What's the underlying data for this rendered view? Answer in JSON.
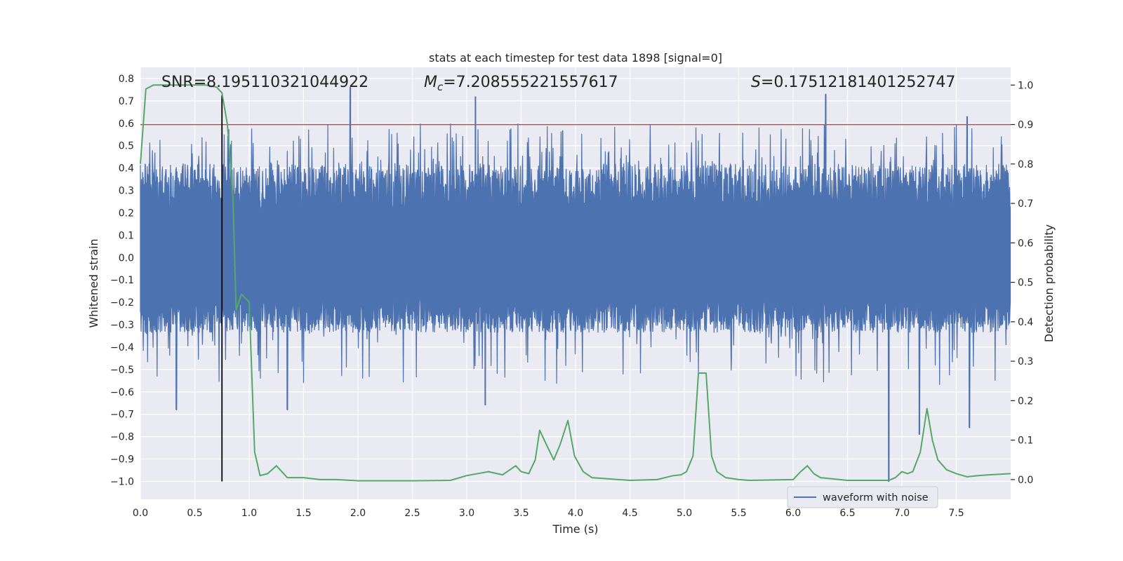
{
  "chart_data": {
    "type": "line",
    "title": "stats at each timestep for test data 1898 [signal=0]",
    "xlabel": "Time (s)",
    "ylabel_left": "Whitened strain",
    "ylabel_right": "Detection probability",
    "xlim": [
      0.0,
      8.0
    ],
    "ylim_left": [
      -1.08,
      0.85
    ],
    "ylim_right": [
      -0.05,
      1.045
    ],
    "x_ticks": [
      0.0,
      0.5,
      1.0,
      1.5,
      2.0,
      2.5,
      3.0,
      3.5,
      4.0,
      4.5,
      5.0,
      5.5,
      6.0,
      6.5,
      7.0,
      7.5
    ],
    "x_tick_labels": [
      "0.0",
      "0.5",
      "1.0",
      "1.5",
      "2.0",
      "2.5",
      "3.0",
      "3.5",
      "4.0",
      "4.5",
      "5.0",
      "5.5",
      "6.0",
      "6.5",
      "7.0",
      "7.5"
    ],
    "y_left_ticks": [
      0.8,
      0.7,
      0.6,
      0.5,
      0.4,
      0.3,
      0.2,
      0.1,
      0.0,
      -0.1,
      -0.2,
      -0.3,
      -0.4,
      -0.5,
      -0.6,
      -0.7,
      -0.8,
      -0.9,
      -1.0
    ],
    "y_left_tick_labels": [
      "0.8",
      "0.7",
      "0.6",
      "0.5",
      "0.4",
      "0.3",
      "0.2",
      "0.1",
      "0.0",
      "−0.1",
      "−0.2",
      "−0.3",
      "−0.4",
      "−0.5",
      "−0.6",
      "−0.7",
      "−0.8",
      "−0.9",
      "−1.0"
    ],
    "y_right_ticks": [
      1.0,
      0.9,
      0.8,
      0.7,
      0.6,
      0.5,
      0.4,
      0.3,
      0.2,
      0.1,
      0.0
    ],
    "y_right_tick_labels": [
      "1.0",
      "0.9",
      "0.8",
      "0.7",
      "0.6",
      "0.5",
      "0.4",
      "0.3",
      "0.2",
      "0.1",
      "0.0"
    ],
    "annotations": {
      "snr": "SNR=8.195110321044922",
      "mc_symbol": "M",
      "mc_subscript": "c",
      "mc_value": "=7.208555221557617",
      "s_symbol": "S",
      "s_value": "=0.17512181401252747"
    },
    "threshold_right": 0.9,
    "marker_time": 0.75,
    "marker_ymin_left": -1.0,
    "legend": {
      "label": "waveform with noise",
      "position": "lower-right"
    },
    "colors": {
      "background": "#eaeaf2",
      "grid": "#ffffff",
      "waveform": "#4c72b0",
      "probability": "#55a868",
      "threshold": "#c44e52",
      "marker": "#000000",
      "text": "#262626"
    },
    "waveform": {
      "name": "waveform with noise",
      "duration_s": 8.0,
      "envelope_top": 0.42,
      "envelope_bottom": -0.32,
      "notable_peaks": [
        {
          "t": 1.93,
          "v": 0.76
        },
        {
          "t": 3.08,
          "v": 0.72
        },
        {
          "t": 6.3,
          "v": 0.73
        },
        {
          "t": 7.6,
          "v": 0.63
        },
        {
          "t": 0.33,
          "v": -0.68
        },
        {
          "t": 1.35,
          "v": -0.68
        },
        {
          "t": 3.17,
          "v": -0.66
        },
        {
          "t": 6.88,
          "v": -1.0
        },
        {
          "t": 7.16,
          "v": -0.79
        },
        {
          "t": 7.62,
          "v": -0.76
        }
      ]
    },
    "probability": {
      "name": "detection probability",
      "t": [
        0.0,
        0.05,
        0.12,
        0.2,
        0.3,
        0.4,
        0.5,
        0.6,
        0.7,
        0.75,
        0.8,
        0.85,
        0.88,
        0.93,
        1.0,
        1.05,
        1.1,
        1.17,
        1.25,
        1.35,
        1.5,
        1.65,
        1.8,
        2.0,
        2.5,
        2.85,
        3.0,
        3.2,
        3.33,
        3.45,
        3.5,
        3.57,
        3.63,
        3.67,
        3.73,
        3.8,
        3.86,
        3.93,
        3.99,
        4.07,
        4.15,
        4.5,
        4.75,
        4.9,
        4.97,
        5.02,
        5.08,
        5.13,
        5.2,
        5.25,
        5.3,
        5.38,
        5.5,
        5.6,
        6.0,
        6.07,
        6.13,
        6.19,
        6.25,
        6.5,
        6.88,
        6.94,
        7.0,
        7.05,
        7.1,
        7.17,
        7.23,
        7.28,
        7.33,
        7.41,
        7.5,
        7.6,
        7.7,
        7.8,
        8.0
      ],
      "values": [
        0.8,
        0.99,
        1.0,
        1.0,
        1.0,
        1.0,
        1.0,
        1.0,
        0.995,
        0.98,
        0.9,
        0.72,
        0.43,
        0.47,
        0.45,
        0.07,
        0.01,
        0.015,
        0.035,
        0.005,
        0.005,
        0.0,
        0.0,
        -0.003,
        -0.003,
        -0.002,
        0.01,
        0.02,
        0.012,
        0.035,
        0.02,
        0.015,
        0.05,
        0.125,
        0.09,
        0.05,
        0.09,
        0.15,
        0.06,
        0.02,
        0.005,
        -0.002,
        0.0,
        0.01,
        0.012,
        0.02,
        0.06,
        0.27,
        0.27,
        0.06,
        0.02,
        0.005,
        0.0,
        -0.002,
        0.0,
        0.02,
        0.035,
        0.015,
        0.005,
        -0.002,
        -0.002,
        0.005,
        0.02,
        0.015,
        0.02,
        0.07,
        0.18,
        0.1,
        0.05,
        0.025,
        0.015,
        0.007,
        0.01,
        0.012,
        0.015
      ]
    }
  }
}
